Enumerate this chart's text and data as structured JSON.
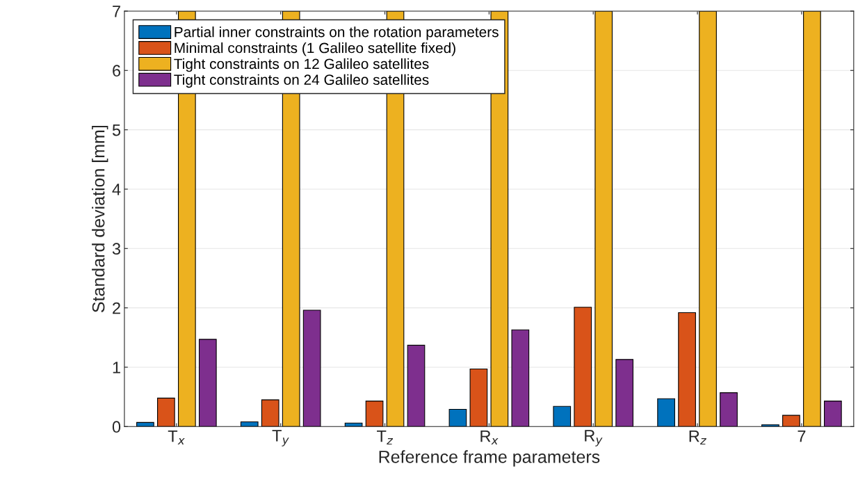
{
  "chart_data": {
    "type": "bar",
    "xlabel": "Reference frame parameters",
    "ylabel": "Standard deviation [mm]",
    "categories": [
      "T$_{x}$",
      "T$_{y}$",
      "T$_{z}$",
      "R$_{x}$",
      "R$_{y}$",
      "R$_{z}$",
      "7"
    ],
    "series": [
      {
        "name": "Partial inner constraints on the rotation parameters",
        "color": "#0072bd",
        "values": [
          0.07,
          0.08,
          0.06,
          0.29,
          0.34,
          0.47,
          0.03
        ]
      },
      {
        "name": "Minimal constraints (1 Galileo satellite fixed)",
        "color": "#d95319",
        "values": [
          0.48,
          0.45,
          0.43,
          0.97,
          2.01,
          1.92,
          0.19
        ]
      },
      {
        "name": "Tight constraints on 12 Galileo satellites",
        "color": "#edb120",
        "values": [
          7,
          7,
          7,
          7,
          7,
          7,
          7
        ]
      },
      {
        "name": "Tight constraints on 24 Galileo satellites",
        "color": "#7e2f8e",
        "values": [
          1.47,
          1.96,
          1.37,
          1.63,
          1.13,
          0.57,
          0.43
        ]
      }
    ],
    "ylim": [
      0,
      7
    ],
    "yticks": [
      0,
      1,
      2,
      3,
      4,
      5,
      6,
      7
    ],
    "grid": "y",
    "legend": "top left"
  }
}
